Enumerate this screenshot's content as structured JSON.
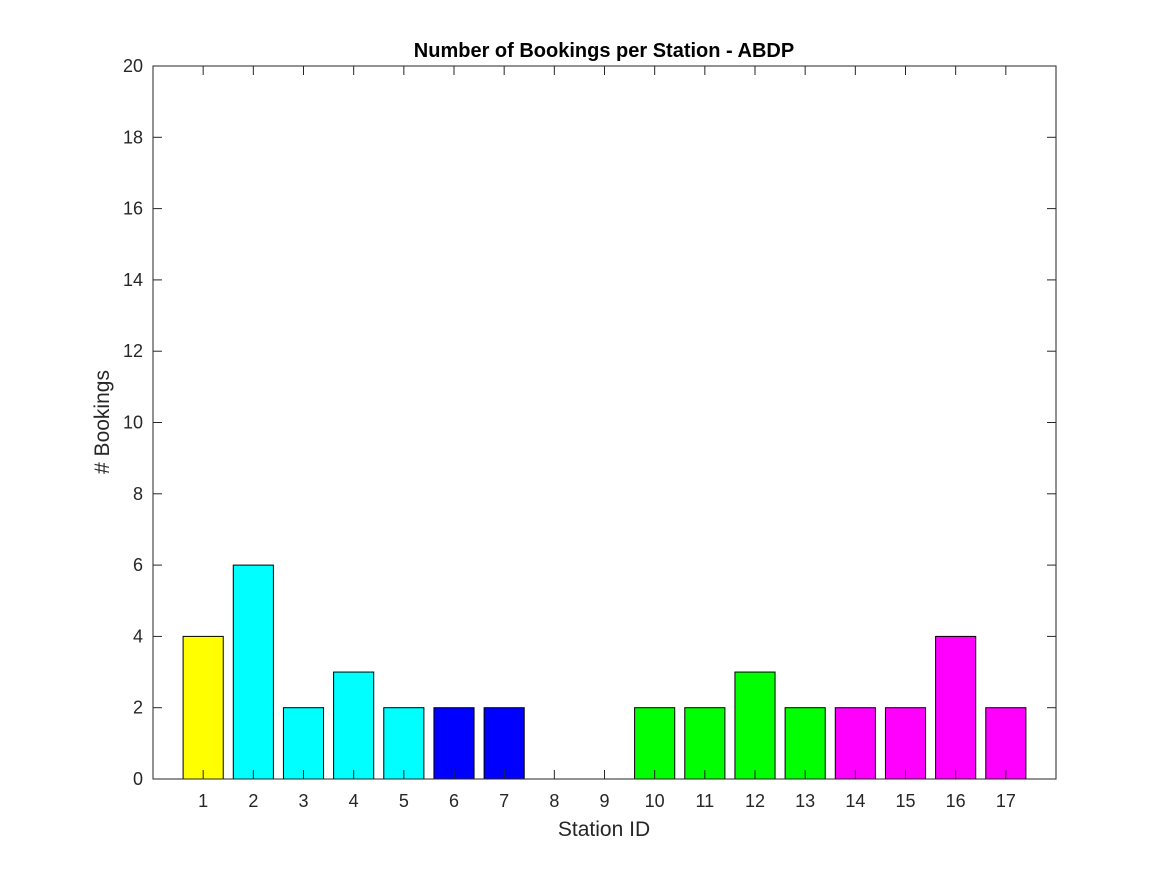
{
  "chart_data": {
    "type": "bar",
    "title": "Number of Bookings per Station - ABDP",
    "xlabel": "Station ID",
    "ylabel": "# Bookings",
    "categories": [
      "1",
      "2",
      "3",
      "4",
      "5",
      "6",
      "7",
      "8",
      "9",
      "10",
      "11",
      "12",
      "13",
      "14",
      "15",
      "16",
      "17"
    ],
    "values": [
      4,
      6,
      2,
      3,
      2,
      2,
      2,
      0,
      0,
      2,
      2,
      3,
      2,
      2,
      2,
      4,
      2
    ],
    "bar_colors": [
      "#ffff00",
      "#00ffff",
      "#00ffff",
      "#00ffff",
      "#00ffff",
      "#0000ff",
      "#0000ff",
      "#ff0000",
      "#ff0000",
      "#00ff00",
      "#00ff00",
      "#00ff00",
      "#00ff00",
      "#ff00ff",
      "#ff00ff",
      "#ff00ff",
      "#ff00ff"
    ],
    "ylim": [
      0,
      20
    ],
    "yticks": [
      0,
      2,
      4,
      6,
      8,
      10,
      12,
      14,
      16,
      18,
      20
    ],
    "grid": false,
    "legend": "none"
  }
}
